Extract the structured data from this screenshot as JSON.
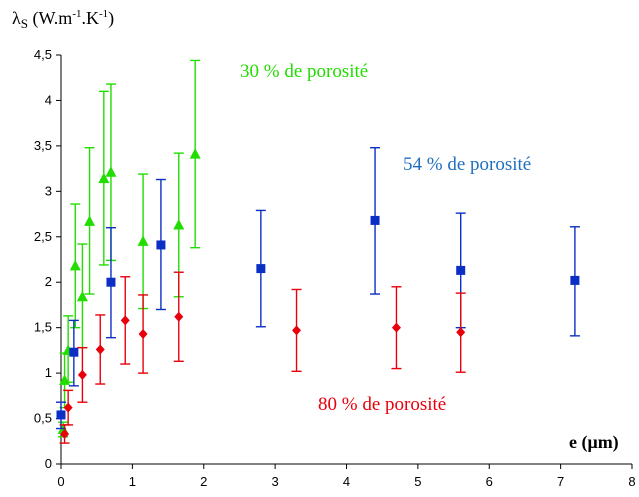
{
  "chart_data": {
    "type": "scatter",
    "ylabel": "λS (W.m-1.K-1)",
    "ylabel_parts": {
      "lambda": "λ",
      "sub": "S",
      "open": " (W.m",
      "sup1": "-1",
      "mid": ".K",
      "sup2": "-1",
      "close": ")"
    },
    "xlabel": "e (μm)",
    "xlim": [
      0,
      8
    ],
    "ylim": [
      0,
      4.5
    ],
    "x_ticks": [
      {
        "v": 0,
        "label": "0"
      },
      {
        "v": 1,
        "label": "1"
      },
      {
        "v": 2,
        "label": "2"
      },
      {
        "v": 3,
        "label": "3"
      },
      {
        "v": 4,
        "label": "4"
      },
      {
        "v": 5,
        "label": "5"
      },
      {
        "v": 6,
        "label": "6"
      },
      {
        "v": 7,
        "label": "7"
      },
      {
        "v": 8,
        "label": "8"
      }
    ],
    "y_ticks": [
      {
        "v": 0,
        "label": "0"
      },
      {
        "v": 0.5,
        "label": "0,5"
      },
      {
        "v": 1,
        "label": "1"
      },
      {
        "v": 1.5,
        "label": "1,5"
      },
      {
        "v": 2,
        "label": "2"
      },
      {
        "v": 2.5,
        "label": "2,5"
      },
      {
        "v": 3,
        "label": "3"
      },
      {
        "v": 3.5,
        "label": "3,5"
      },
      {
        "v": 4,
        "label": "4"
      },
      {
        "v": 4.5,
        "label": "4,5"
      }
    ],
    "grid": false,
    "series": [
      {
        "annotation": "30 % de porosité",
        "color": "#22dd00",
        "marker": "triangle",
        "points": [
          {
            "x": 0.03,
            "y": 0.38,
            "lo": 0.3,
            "hi": 0.46
          },
          {
            "x": 0.05,
            "y": 0.92,
            "lo": 0.62,
            "hi": 1.22
          },
          {
            "x": 0.1,
            "y": 1.25,
            "lo": 0.9,
            "hi": 1.63
          },
          {
            "x": 0.2,
            "y": 2.18,
            "lo": 1.5,
            "hi": 2.86
          },
          {
            "x": 0.3,
            "y": 1.84,
            "lo": 1.28,
            "hi": 2.42
          },
          {
            "x": 0.4,
            "y": 2.67,
            "lo": 1.87,
            "hi": 3.48
          },
          {
            "x": 0.6,
            "y": 3.14,
            "lo": 2.19,
            "hi": 4.1
          },
          {
            "x": 0.7,
            "y": 3.21,
            "lo": 2.24,
            "hi": 4.18
          },
          {
            "x": 1.15,
            "y": 2.45,
            "lo": 1.71,
            "hi": 3.19
          },
          {
            "x": 1.65,
            "y": 2.63,
            "lo": 1.84,
            "hi": 3.42
          },
          {
            "x": 1.88,
            "y": 3.41,
            "lo": 2.38,
            "hi": 4.44
          }
        ]
      },
      {
        "annotation": "54 % de porosité",
        "color": "#0b2fc4",
        "marker": "square",
        "points": [
          {
            "x": 0.0,
            "y": 0.54,
            "lo": 0.39,
            "hi": 0.68
          },
          {
            "x": 0.18,
            "y": 1.23,
            "lo": 0.86,
            "hi": 1.58
          },
          {
            "x": 0.7,
            "y": 2.0,
            "lo": 1.39,
            "hi": 2.6
          },
          {
            "x": 1.4,
            "y": 2.41,
            "lo": 1.7,
            "hi": 3.13
          },
          {
            "x": 2.8,
            "y": 2.15,
            "lo": 1.51,
            "hi": 2.79
          },
          {
            "x": 4.4,
            "y": 2.68,
            "lo": 1.87,
            "hi": 3.48
          },
          {
            "x": 5.6,
            "y": 2.13,
            "lo": 1.5,
            "hi": 2.76
          },
          {
            "x": 7.2,
            "y": 2.02,
            "lo": 1.41,
            "hi": 2.61
          }
        ]
      },
      {
        "annotation": "80 % de porosité",
        "color": "#e8000b",
        "marker": "diamond",
        "points": [
          {
            "x": 0.05,
            "y": 0.33,
            "lo": 0.23,
            "hi": 0.43
          },
          {
            "x": 0.1,
            "y": 0.62,
            "lo": 0.43,
            "hi": 0.81
          },
          {
            "x": 0.3,
            "y": 0.98,
            "lo": 0.68,
            "hi": 1.28
          },
          {
            "x": 0.55,
            "y": 1.26,
            "lo": 0.88,
            "hi": 1.64
          },
          {
            "x": 0.9,
            "y": 1.58,
            "lo": 1.1,
            "hi": 2.06
          },
          {
            "x": 1.15,
            "y": 1.43,
            "lo": 1.0,
            "hi": 1.86
          },
          {
            "x": 1.65,
            "y": 1.62,
            "lo": 1.13,
            "hi": 2.11
          },
          {
            "x": 3.3,
            "y": 1.47,
            "lo": 1.02,
            "hi": 1.92
          },
          {
            "x": 4.7,
            "y": 1.5,
            "lo": 1.05,
            "hi": 1.95
          },
          {
            "x": 5.6,
            "y": 1.45,
            "lo": 1.01,
            "hi": 1.88
          }
        ]
      }
    ]
  }
}
